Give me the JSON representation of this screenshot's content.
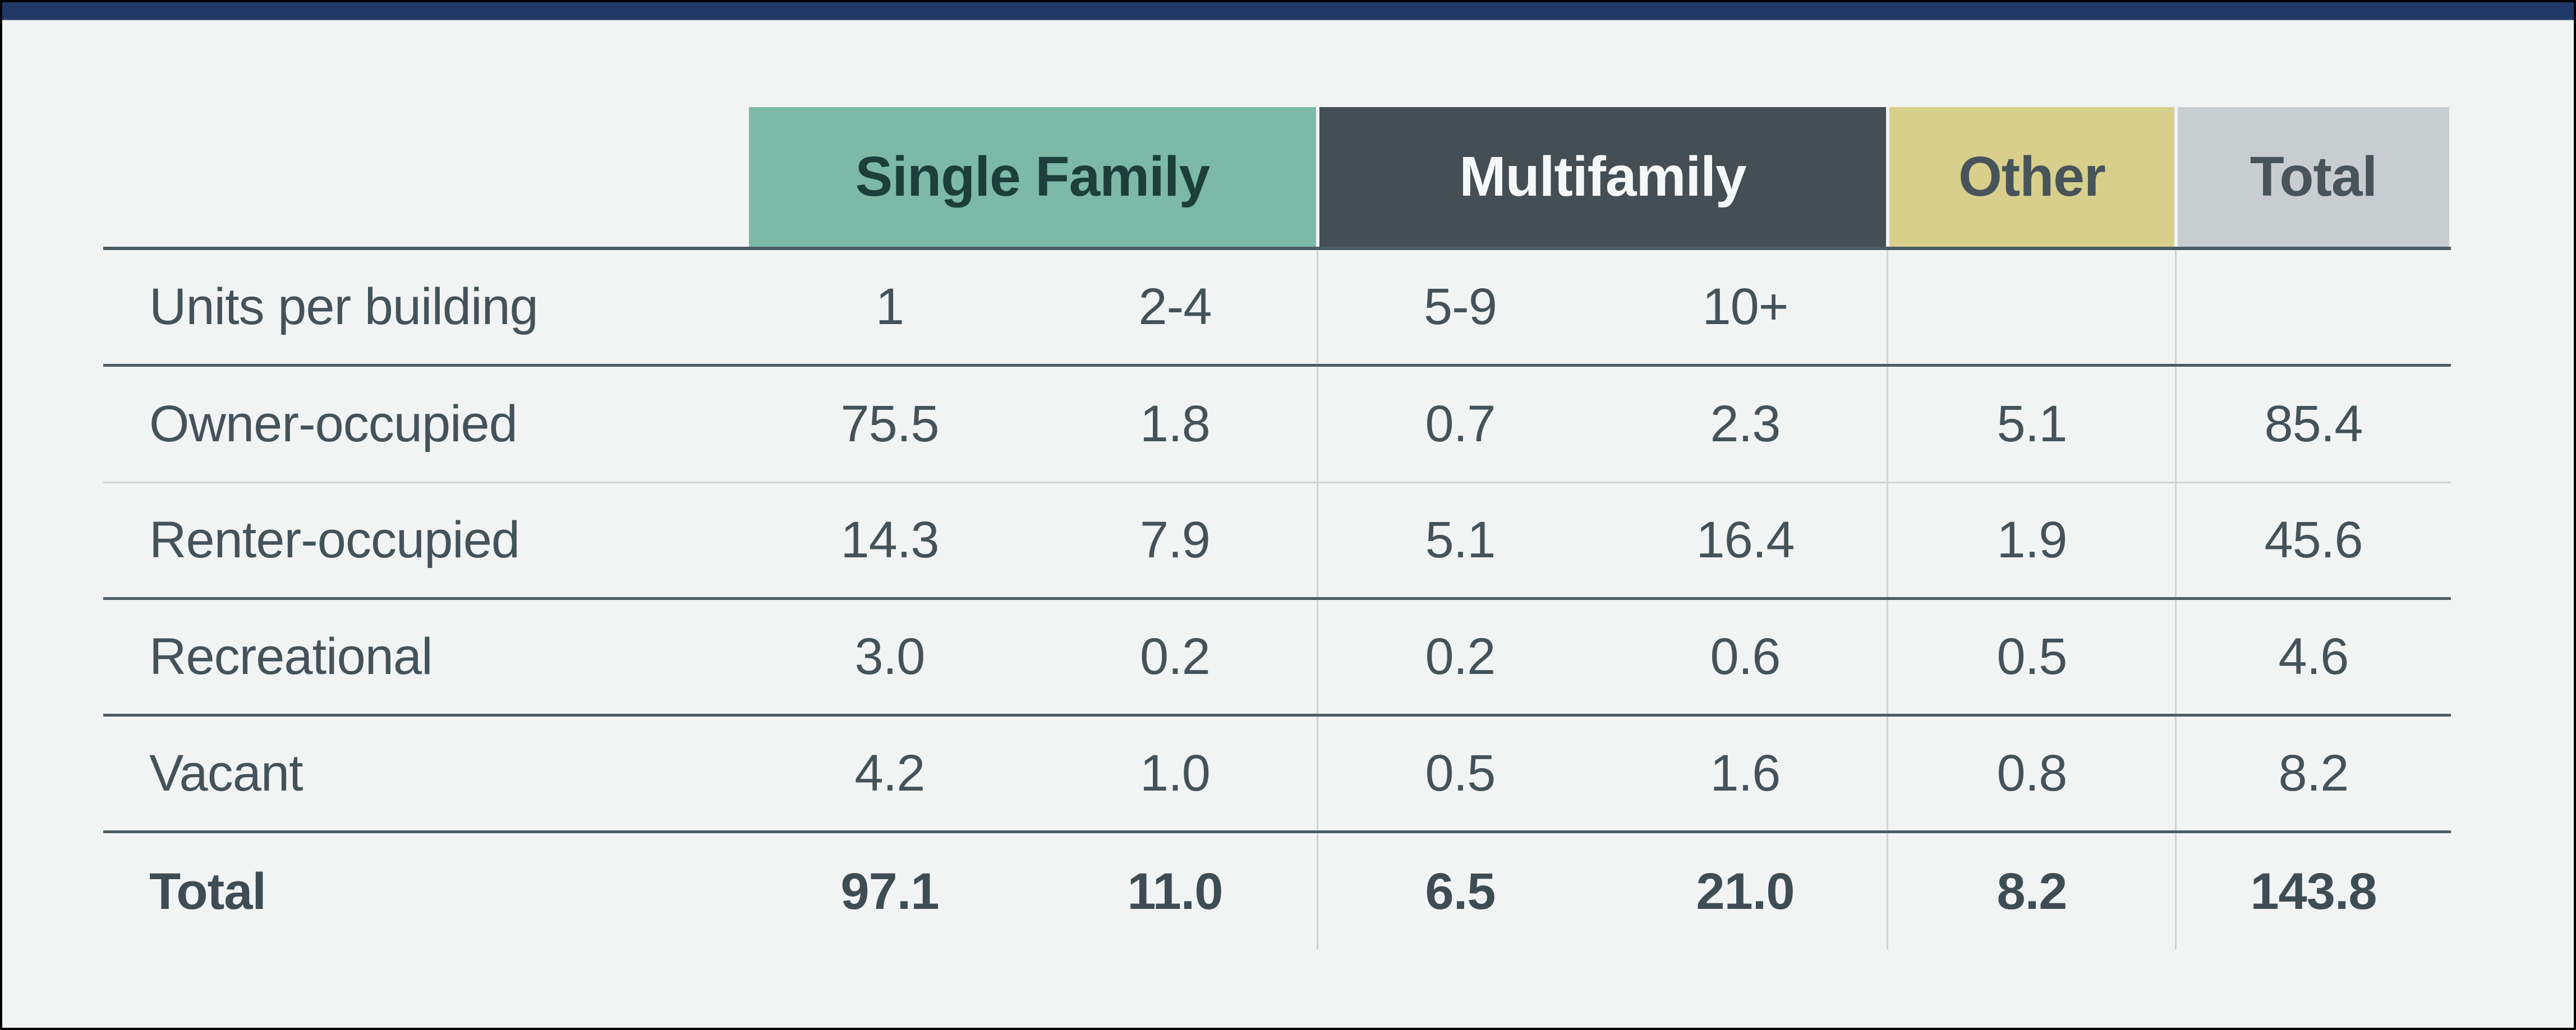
{
  "page": {
    "background_color": "#f2f4f3",
    "top_bar_color": "#1f3866",
    "frame_color": "#000000",
    "text_color": "#44535a",
    "dark_line_color": "#4d5c62",
    "light_line_color": "#ccd5d6"
  },
  "table": {
    "groups": [
      {
        "label": "Single Family",
        "bg": "#7cb9a7",
        "text_color": "#1c3f39"
      },
      {
        "label": "Multifamily",
        "bg": "#434f55",
        "text_color": "#f6f8f7"
      },
      {
        "label": "Other",
        "bg": "#d7cf8b",
        "text_color": "#47545a"
      },
      {
        "label": "Total",
        "bg": "#c8ced0",
        "text_color": "#47545a"
      }
    ],
    "rows": [
      {
        "label": "Units per building",
        "cells": [
          "1",
          "2-4",
          "5-9",
          "10+",
          "",
          ""
        ]
      },
      {
        "label": "Owner-occupied",
        "cells": [
          "75.5",
          "1.8",
          "0.7",
          "2.3",
          "5.1",
          "85.4"
        ]
      },
      {
        "label": "Renter-occupied",
        "cells": [
          "14.3",
          "7.9",
          "5.1",
          "16.4",
          "1.9",
          "45.6"
        ]
      },
      {
        "label": "Recreational",
        "cells": [
          "3.0",
          "0.2",
          "0.2",
          "0.6",
          "0.5",
          "4.6"
        ]
      },
      {
        "label": "Vacant",
        "cells": [
          "4.2",
          "1.0",
          "0.5",
          "1.6",
          "0.8",
          "8.2"
        ]
      },
      {
        "label": "Total",
        "cells": [
          "97.1",
          "11.0",
          "6.5",
          "21.0",
          "8.2",
          "143.8"
        ]
      }
    ]
  },
  "chart_data": {
    "type": "table",
    "title": "",
    "column_groups": [
      {
        "name": "Single Family",
        "columns": [
          "1",
          "2-4"
        ]
      },
      {
        "name": "Multifamily",
        "columns": [
          "5-9",
          "10+"
        ]
      },
      {
        "name": "Other",
        "columns": [
          ""
        ]
      },
      {
        "name": "Total",
        "columns": [
          ""
        ]
      }
    ],
    "units_per_building_row": [
      "1",
      "2-4",
      "5-9",
      "10+",
      "",
      ""
    ],
    "rows": [
      {
        "label": "Owner-occupied",
        "values": [
          75.5,
          1.8,
          0.7,
          2.3,
          5.1,
          85.4
        ]
      },
      {
        "label": "Renter-occupied",
        "values": [
          14.3,
          7.9,
          5.1,
          16.4,
          1.9,
          45.6
        ]
      },
      {
        "label": "Recreational",
        "values": [
          3.0,
          0.2,
          0.2,
          0.6,
          0.5,
          4.6
        ]
      },
      {
        "label": "Vacant",
        "values": [
          4.2,
          1.0,
          0.5,
          1.6,
          0.8,
          8.2
        ]
      },
      {
        "label": "Total",
        "values": [
          97.1,
          11.0,
          6.5,
          21.0,
          8.2,
          143.8
        ]
      }
    ]
  }
}
